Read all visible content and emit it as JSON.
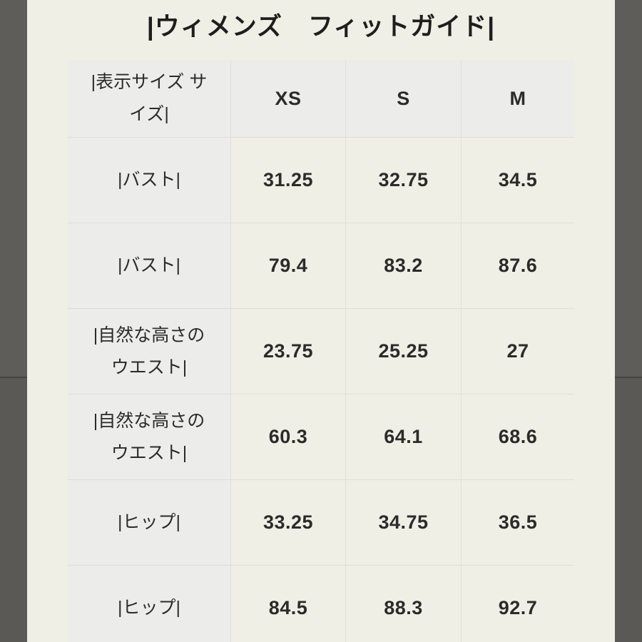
{
  "title": "|ウィメンズ　フィットガイド|",
  "table": {
    "header": {
      "label": "|表示サイズ サイズ|",
      "col1": "XS",
      "col2": "S",
      "col3": "M"
    },
    "rows": [
      {
        "label": "|バスト|",
        "values": [
          "31.25",
          "32.75",
          "34.5"
        ]
      },
      {
        "label": "|バスト|",
        "values": [
          "79.4",
          "83.2",
          "87.6"
        ]
      },
      {
        "label": "|自然な高さのウエスト|",
        "values": [
          "23.75",
          "25.25",
          "27"
        ]
      },
      {
        "label": "|自然な高さのウエスト|",
        "values": [
          "60.3",
          "64.1",
          "68.6"
        ]
      },
      {
        "label": "|ヒップ|",
        "values": [
          "33.25",
          "34.75",
          "36.5"
        ]
      },
      {
        "label": "|ヒップ|",
        "values": [
          "84.5",
          "88.3",
          "92.7"
        ]
      }
    ]
  },
  "chart_data": {
    "type": "table",
    "title": "|ウィメンズ　フィットガイド|",
    "columns": [
      "表示サイズ サイズ",
      "XS",
      "S",
      "M"
    ],
    "rows": [
      [
        "バスト",
        31.25,
        32.75,
        34.5
      ],
      [
        "バスト",
        79.4,
        83.2,
        87.6
      ],
      [
        "自然な高さのウエスト",
        23.75,
        25.25,
        27
      ],
      [
        "自然な高さのウエスト",
        60.3,
        64.1,
        68.6
      ],
      [
        "ヒップ",
        33.25,
        34.75,
        36.5
      ],
      [
        "ヒップ",
        84.5,
        88.3,
        92.7
      ]
    ]
  },
  "colors": {
    "page_background": "#f0efe5",
    "letterbox_bar": "#5e5d59",
    "letterbox_bar_lower": "#5a5955",
    "header_and_label_cell": "#ececea",
    "row_white": "#fdfdfd",
    "row_striped": "#f2f4f5",
    "text": "#2b2b2b"
  }
}
